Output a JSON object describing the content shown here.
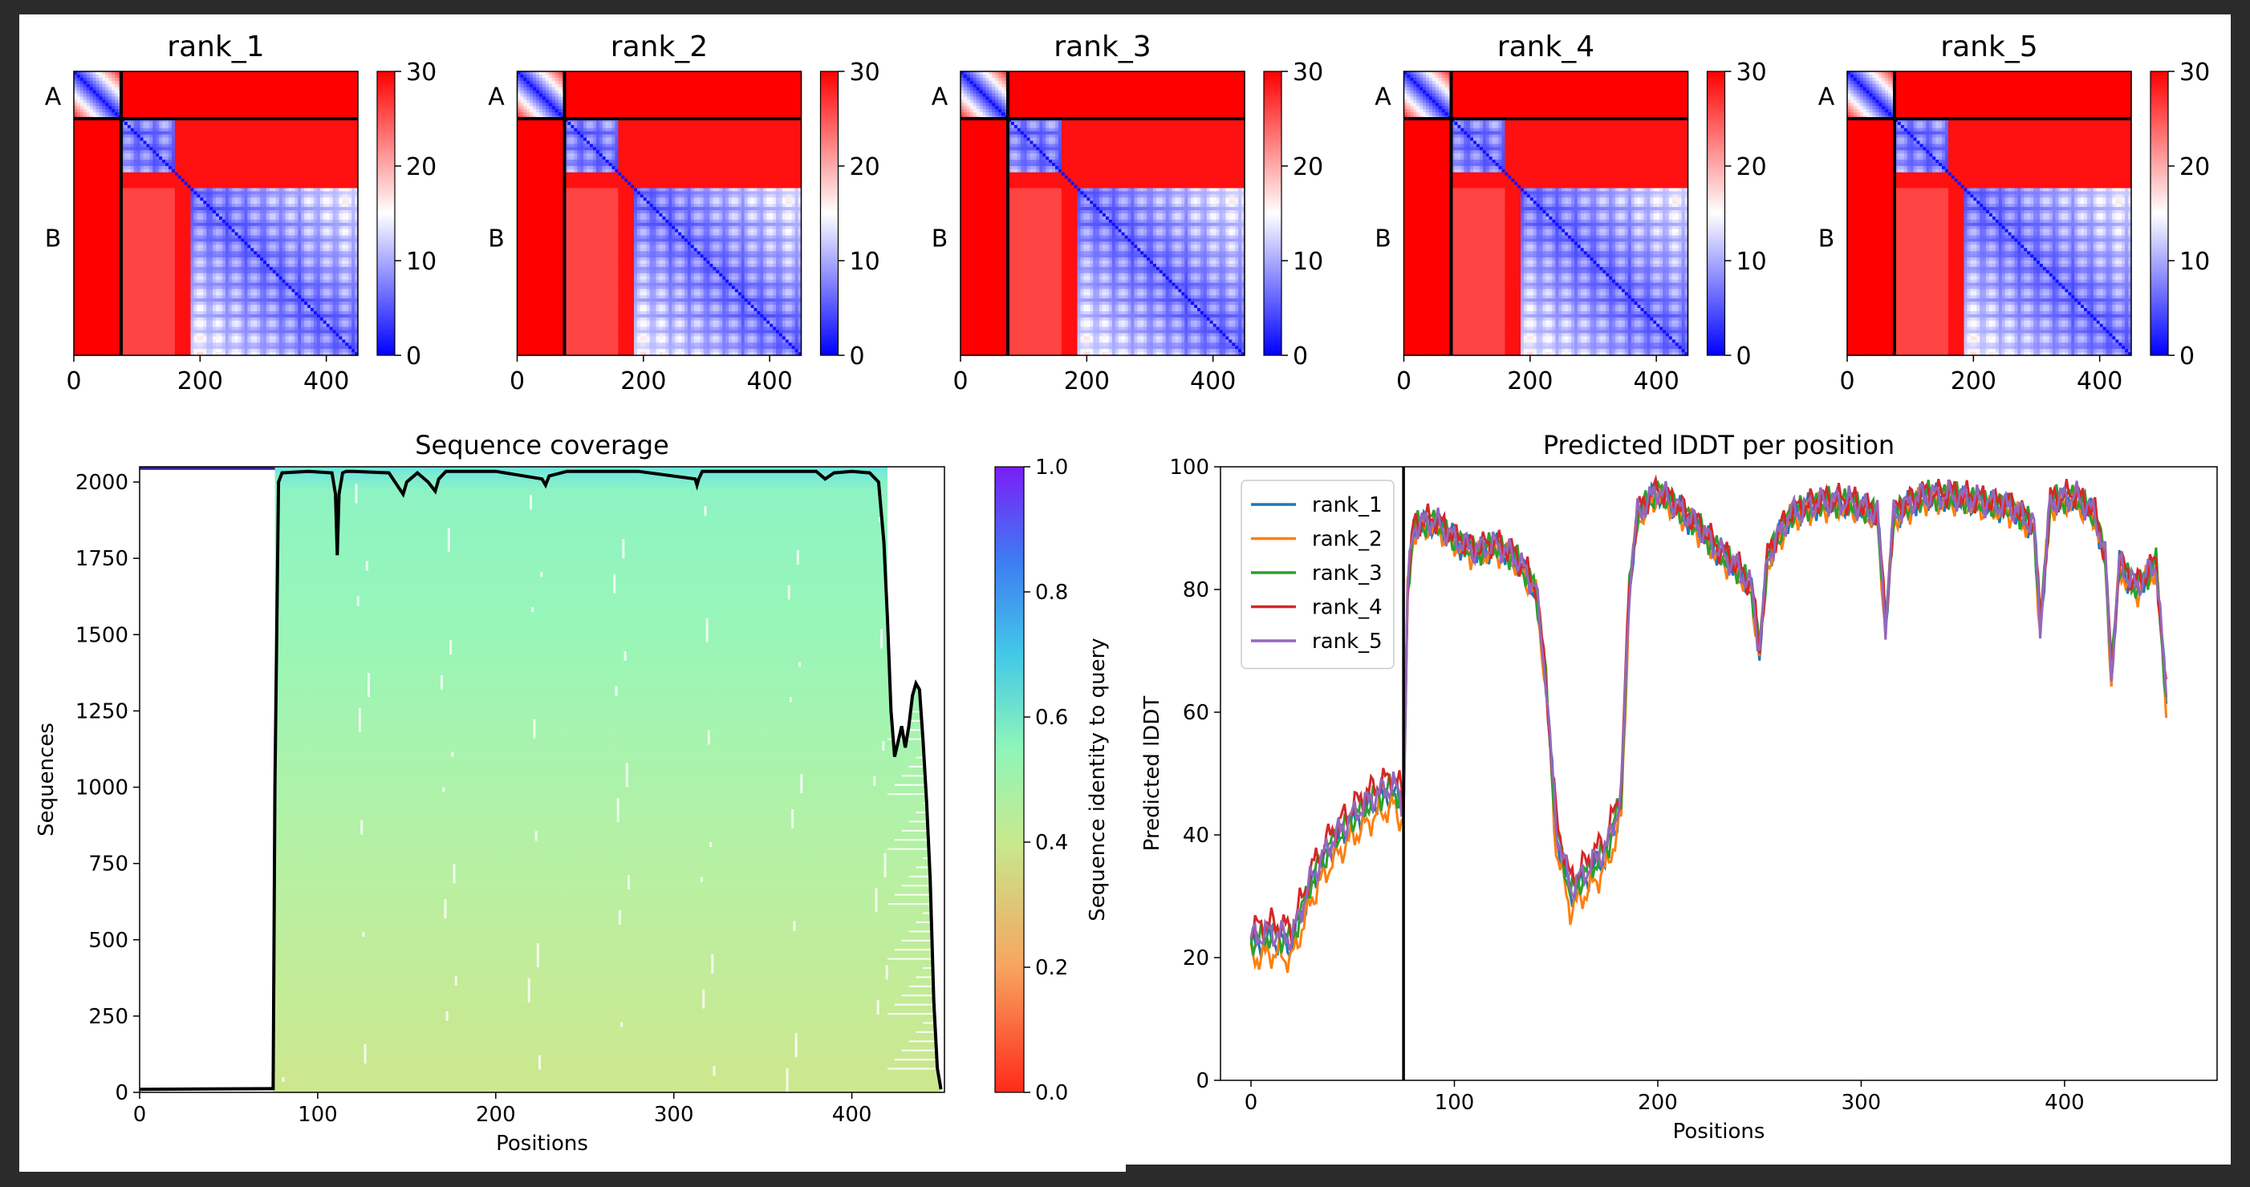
{
  "frame_colors": {
    "background": "#2b2b2b",
    "figure": "#ffffff"
  },
  "chart_data": [
    {
      "type": "heatmap",
      "panel": "pae",
      "titles": [
        "rank_1",
        "rank_2",
        "rank_3",
        "rank_4",
        "rank_5"
      ],
      "chain_labels": [
        "A",
        "B"
      ],
      "chain_break": 75,
      "length": 450,
      "xticks": [
        0,
        200,
        400
      ],
      "colorbar": {
        "ticks": [
          0,
          10,
          20,
          30
        ],
        "range": [
          0,
          30
        ],
        "colors": [
          "#0000ff",
          "#ffffff",
          "#ff0000"
        ]
      },
      "domains": [
        [
          75,
          160
        ],
        [
          185,
          450
        ]
      ]
    },
    {
      "type": "heatmap",
      "panel": "coverage",
      "title": "Sequence coverage",
      "xlabel": "Positions",
      "ylabel": "Sequences",
      "xlim": [
        0,
        452
      ],
      "ylim": [
        0,
        2050
      ],
      "xticks": [
        0,
        100,
        200,
        300,
        400
      ],
      "yticks": [
        0,
        250,
        500,
        750,
        1000,
        1250,
        1500,
        1750,
        2000
      ],
      "colorbar": {
        "label": "Sequence identity to query",
        "ticks": [
          0.0,
          0.2,
          0.4,
          0.6,
          0.8,
          1.0
        ]
      },
      "coverage_line": {
        "x": [
          0,
          74,
          75,
          76,
          78,
          80,
          95,
          108,
          110,
          111,
          112,
          114,
          116,
          120,
          140,
          148,
          150,
          152,
          156,
          162,
          166,
          168,
          172,
          200,
          226,
          228,
          230,
          240,
          280,
          312,
          313,
          314,
          316,
          330,
          380,
          385,
          390,
          400,
          410,
          415,
          418,
          420,
          422,
          424,
          426,
          428,
          430,
          432,
          434,
          436,
          438,
          440,
          442,
          444,
          446,
          448,
          450
        ],
        "y": [
          10,
          12,
          12,
          1000,
          2000,
          2030,
          2035,
          2030,
          1960,
          1760,
          1960,
          2030,
          2035,
          2035,
          2030,
          1960,
          2000,
          2010,
          2030,
          2000,
          1970,
          2010,
          2035,
          2035,
          2010,
          1990,
          2020,
          2035,
          2035,
          2010,
          1990,
          2010,
          2035,
          2035,
          2035,
          2010,
          2030,
          2035,
          2030,
          2000,
          1800,
          1550,
          1250,
          1100,
          1150,
          1200,
          1130,
          1200,
          1300,
          1340,
          1320,
          1150,
          950,
          700,
          300,
          80,
          10
        ]
      }
    },
    {
      "type": "line",
      "panel": "plddt",
      "title": "Predicted lDDT per position",
      "xlabel": "Positions",
      "ylabel": "Predicted lDDT",
      "xlim": [
        -15,
        475
      ],
      "ylim": [
        0,
        100
      ],
      "xticks": [
        0,
        100,
        200,
        300,
        400
      ],
      "yticks": [
        0,
        20,
        40,
        60,
        80,
        100
      ],
      "chain_break": 75,
      "legend_position": "upper left",
      "series": [
        {
          "name": "rank_1",
          "color": "#1f77b4",
          "offset": 0
        },
        {
          "name": "rank_2",
          "color": "#ff7f0e",
          "offset": -1.5
        },
        {
          "name": "rank_3",
          "color": "#2ca02c",
          "offset": 0.5
        },
        {
          "name": "rank_4",
          "color": "#d62728",
          "offset": 1.8
        },
        {
          "name": "rank_5",
          "color": "#9467bd",
          "offset": 0.8
        }
      ],
      "profile": [
        [
          0,
          22
        ],
        [
          10,
          23
        ],
        [
          20,
          22
        ],
        [
          30,
          32
        ],
        [
          40,
          38
        ],
        [
          50,
          42
        ],
        [
          60,
          45
        ],
        [
          70,
          47
        ],
        [
          75,
          44
        ],
        [
          77,
          80
        ],
        [
          80,
          90
        ],
        [
          90,
          91
        ],
        [
          100,
          88
        ],
        [
          110,
          86
        ],
        [
          120,
          87
        ],
        [
          130,
          85
        ],
        [
          140,
          80
        ],
        [
          145,
          65
        ],
        [
          150,
          40
        ],
        [
          157,
          30
        ],
        [
          165,
          33
        ],
        [
          175,
          37
        ],
        [
          182,
          45
        ],
        [
          186,
          80
        ],
        [
          190,
          92
        ],
        [
          200,
          96
        ],
        [
          210,
          93
        ],
        [
          220,
          90
        ],
        [
          230,
          86
        ],
        [
          240,
          83
        ],
        [
          246,
          80
        ],
        [
          250,
          70
        ],
        [
          254,
          85
        ],
        [
          265,
          92
        ],
        [
          280,
          94
        ],
        [
          295,
          94
        ],
        [
          308,
          92
        ],
        [
          312,
          74
        ],
        [
          316,
          92
        ],
        [
          330,
          95
        ],
        [
          345,
          95
        ],
        [
          360,
          94
        ],
        [
          375,
          93
        ],
        [
          385,
          90
        ],
        [
          388,
          74
        ],
        [
          393,
          94
        ],
        [
          405,
          95
        ],
        [
          415,
          92
        ],
        [
          420,
          85
        ],
        [
          423,
          66
        ],
        [
          427,
          84
        ],
        [
          435,
          80
        ],
        [
          440,
          82
        ],
        [
          445,
          84
        ],
        [
          450,
          62
        ]
      ]
    }
  ]
}
